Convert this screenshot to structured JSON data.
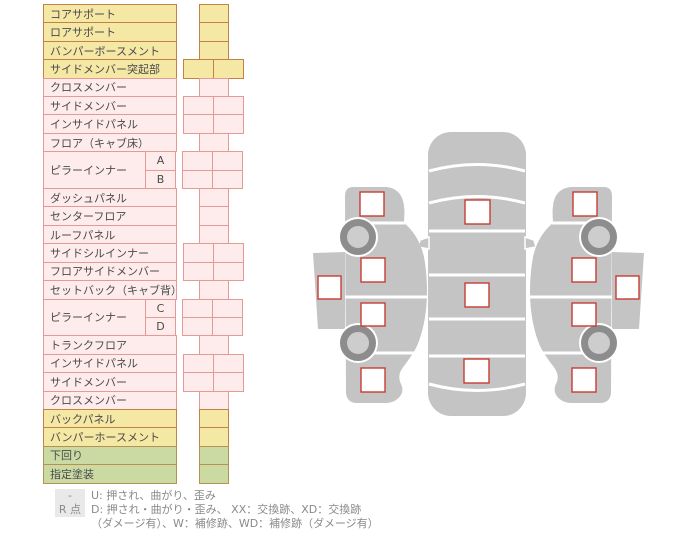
{
  "parts_table": {
    "rows": [
      {
        "label": "コアサポート",
        "palette": "yellow",
        "cells": "narrow"
      },
      {
        "label": "ロアサポート",
        "palette": "yellow",
        "cells": "narrow"
      },
      {
        "label": "バンパーボースメント",
        "palette": "yellow",
        "cells": "narrow"
      },
      {
        "label": "サイドメンバー突起部",
        "palette": "yellow",
        "cells": "wide"
      },
      {
        "label": "クロスメンバー",
        "palette": "pink",
        "cells": "narrow"
      },
      {
        "label": "サイドメンバー",
        "palette": "pink",
        "cells": "wide"
      },
      {
        "label": "インサイドパネル",
        "palette": "pink",
        "cells": "wide"
      },
      {
        "label": "フロア（キャブ床）",
        "palette": "pink",
        "cells": "narrow"
      },
      {
        "label": "ピラーインナー",
        "palette": "pink",
        "cells": "wide",
        "sublabels": [
          "A",
          "B"
        ]
      },
      {
        "label": "ダッシュパネル",
        "palette": "pink",
        "cells": "narrow"
      },
      {
        "label": "センターフロア",
        "palette": "pink",
        "cells": "narrow"
      },
      {
        "label": "ルーフパネル",
        "palette": "pink",
        "cells": "narrow"
      },
      {
        "label": "サイドシルインナー",
        "palette": "pink",
        "cells": "wide"
      },
      {
        "label": "フロアサイドメンバー",
        "palette": "pink",
        "cells": "wide"
      },
      {
        "label": "セットバック（キャブ背）",
        "palette": "pink",
        "cells": "narrow"
      },
      {
        "label": "ピラーインナー",
        "palette": "pink",
        "cells": "wide",
        "sublabels": [
          "C",
          "D"
        ]
      },
      {
        "label": "トランクフロア",
        "palette": "pink",
        "cells": "narrow"
      },
      {
        "label": "インサイドパネル",
        "palette": "pink",
        "cells": "wide"
      },
      {
        "label": "サイドメンバー",
        "palette": "pink",
        "cells": "wide"
      },
      {
        "label": "クロスメンバー",
        "palette": "pink",
        "cells": "narrow"
      },
      {
        "label": "バックパネル",
        "palette": "yellow",
        "cells": "narrow"
      },
      {
        "label": "バンパーホースメント",
        "palette": "yellow",
        "cells": "narrow"
      },
      {
        "label": "下回り",
        "palette": "green",
        "cells": "narrow"
      },
      {
        "label": "指定塗装",
        "palette": "green",
        "cells": "narrow"
      }
    ]
  },
  "legend": {
    "items": [
      {
        "badge": "-",
        "lines": [
          "U: 押され、曲がり、歪み"
        ]
      },
      {
        "badge": "R 点",
        "lines": [
          "D: 押され・曲がり・歪み、 XX：交換跡、XD：交換跡",
          "（ダメージ有）、W：補修跡、WD：補修跡（ダメージ有）"
        ]
      }
    ]
  },
  "colors": {
    "yellow_bg": "#f5e7a4",
    "yellow_border": "#c3814a",
    "pink_bg": "#fdeceb",
    "pink_border": "#e59b95",
    "green_bg": "#cbdaa3",
    "green_border": "#b5924f",
    "car_gray": "#c4c4c4",
    "wheel_ring": "#8d8d8d",
    "wheel_hub": "#cdcdcd",
    "marker_border": "#c63d34",
    "marker_fill": "#ffffff",
    "badge_bg": "#e9e9e9",
    "legend_text": "#8a8a8a"
  }
}
